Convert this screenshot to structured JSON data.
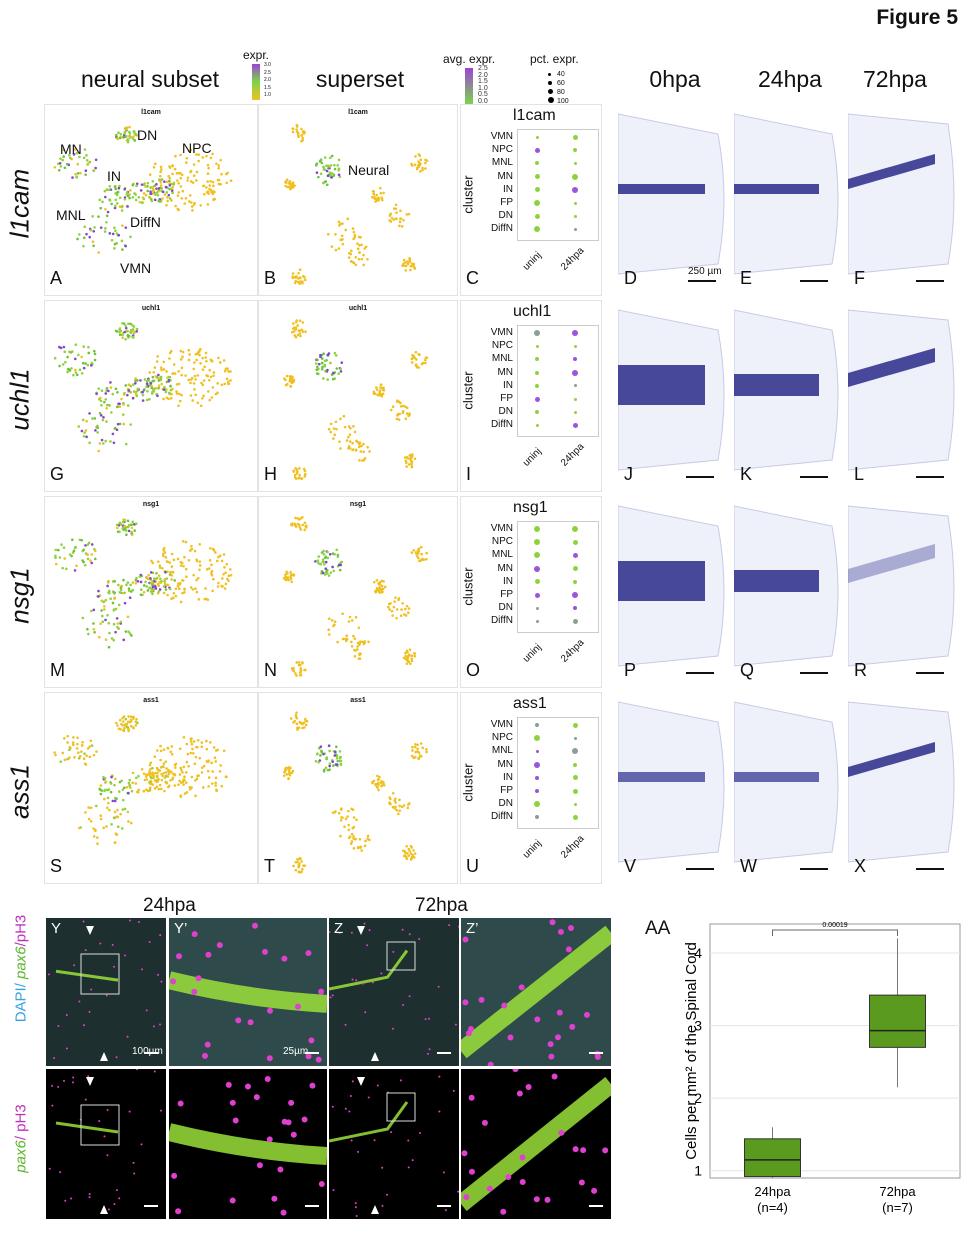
{
  "figure_title": "Figure 5",
  "columns": {
    "neural_subset": "neural subset",
    "superset": "superset",
    "h0": "0hpa",
    "h24": "24hpa",
    "h72": "72hpa"
  },
  "legend": {
    "expr_title": "expr.",
    "expr_ticks": [
      "3.0",
      "2.5",
      "2.0",
      "1.5",
      "1.0"
    ],
    "avg_title": "avg. expr.",
    "avg_ticks": [
      "2.5",
      "2.0",
      "1.5",
      "1.0",
      "0.5",
      "0.0"
    ],
    "pct_title": "pct. expr.",
    "pct_ticks": [
      "40",
      "60",
      "80",
      "100"
    ]
  },
  "rows": [
    {
      "gene": "l1cam",
      "umap_title": "l1cam",
      "panels": [
        "A",
        "B",
        "C",
        "D",
        "E",
        "F"
      ]
    },
    {
      "gene": "uchl1",
      "umap_title": "uchl1",
      "panels": [
        "G",
        "H",
        "I",
        "J",
        "K",
        "L"
      ]
    },
    {
      "gene": "nsg1",
      "umap_title": "nsg1",
      "panels": [
        "M",
        "N",
        "O",
        "P",
        "Q",
        "R"
      ]
    },
    {
      "gene": "ass1",
      "umap_title": "ass1",
      "panels": [
        "S",
        "T",
        "U",
        "V",
        "W",
        "X"
      ]
    }
  ],
  "clusters_A": {
    "mn": "MN",
    "dn": "DN",
    "npc": "NPC",
    "in": "IN",
    "mnl": "MNL",
    "diffn": "DiffN",
    "vmn": "VMN"
  },
  "neural_label": "Neural",
  "dotplot": {
    "ylabel": "cluster",
    "categories": [
      "VMN",
      "NPC",
      "MNL",
      "MN",
      "IN",
      "FP",
      "DN",
      "DiffN"
    ],
    "xcats": [
      "uninj",
      "24hpa"
    ]
  },
  "scale_250": "250 µm",
  "bottom": {
    "h24": "24hpa",
    "h72": "72hpa",
    "Y": "Y",
    "Yp": "Y’",
    "Z": "Z",
    "Zp": "Z’",
    "AA": "AA",
    "side_top_dapi": "DAPI/ ",
    "side_top_pax6": "pax6",
    "side_top_ph3": "/pH3",
    "side_bot_pax6": "pax6",
    "side_bot_ph3": "/ pH3",
    "scale_100": "100µm",
    "scale_25": "25µm"
  },
  "chart_data": {
    "type": "box",
    "title": "",
    "ylabel": "Cells per mm² of the Spinal Cord",
    "ylim": [
      0.9,
      4.4
    ],
    "yticks": [
      1,
      2,
      3,
      4
    ],
    "pvalue": "0.00019",
    "color": "#5a9a1e",
    "categories": [
      "24hpa",
      "72hpa"
    ],
    "category_n": [
      "(n=4)",
      "(n=7)"
    ],
    "boxes": [
      {
        "name": "24hpa",
        "min": 0.9,
        "q1": 0.92,
        "median": 1.15,
        "q3": 1.44,
        "max": 1.6
      },
      {
        "name": "72hpa",
        "min": 2.15,
        "q1": 2.7,
        "median": 2.93,
        "q3": 3.42,
        "max": 4.2
      }
    ]
  }
}
